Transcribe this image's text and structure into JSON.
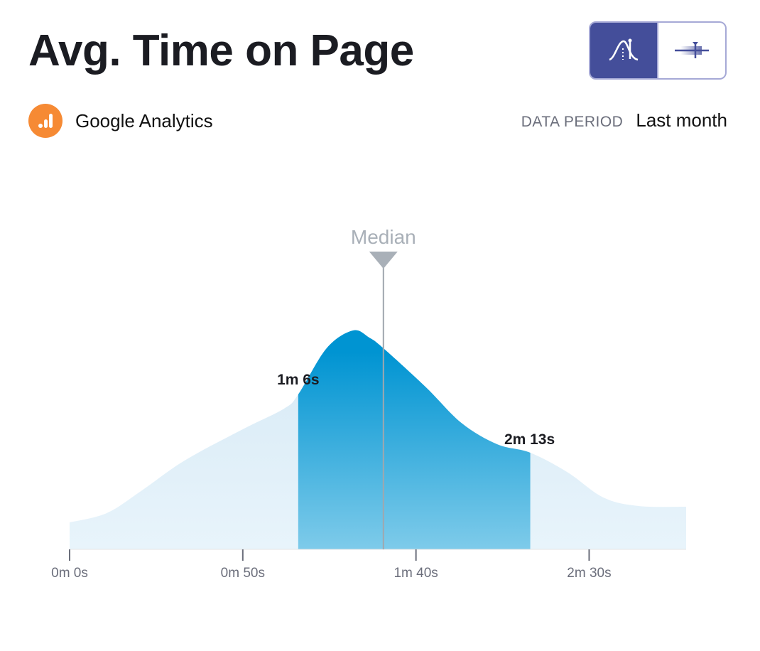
{
  "header": {
    "title": "Avg. Time on Page"
  },
  "view_toggle": [
    {
      "icon": "distribution-curve-icon",
      "active": true
    },
    {
      "icon": "range-bar-icon",
      "active": false
    }
  ],
  "source": {
    "name": "Google Analytics",
    "icon": "google-analytics-icon"
  },
  "period": {
    "label": "DATA PERIOD",
    "value": "Last month"
  },
  "colors": {
    "accent": "#444e9a",
    "fill_light": "#deedf7",
    "fill_dark": "#0094d2",
    "median": "#a9b0b8"
  },
  "chart_data": {
    "type": "area",
    "xlabel": "",
    "ylabel": "",
    "xlim": [
      0,
      178
    ],
    "ylim": [
      0,
      320
    ],
    "x_ticks": [
      {
        "value": 0,
        "label": "0m 0s"
      },
      {
        "value": 50,
        "label": "0m 50s"
      },
      {
        "value": 100,
        "label": "1m 40s"
      },
      {
        "value": 150,
        "label": "2m 30s"
      }
    ],
    "x": [
      0,
      10.7,
      20.9,
      33.2,
      49.6,
      61.9,
      66,
      74.2,
      81.8,
      86.5,
      90.6,
      102.9,
      113.1,
      123.4,
      133,
      143.9,
      154.1,
      164.3,
      178
    ],
    "density": [
      38,
      51,
      83,
      125,
      168,
      198,
      218,
      283,
      308,
      298,
      283,
      228,
      178,
      148,
      136,
      108,
      73,
      61,
      60
    ],
    "highlight_range": {
      "start": 66,
      "end": 133,
      "start_label": "1m 6s",
      "end_label": "2m 13s"
    },
    "median": {
      "value": 90.6,
      "label": "Median"
    }
  }
}
